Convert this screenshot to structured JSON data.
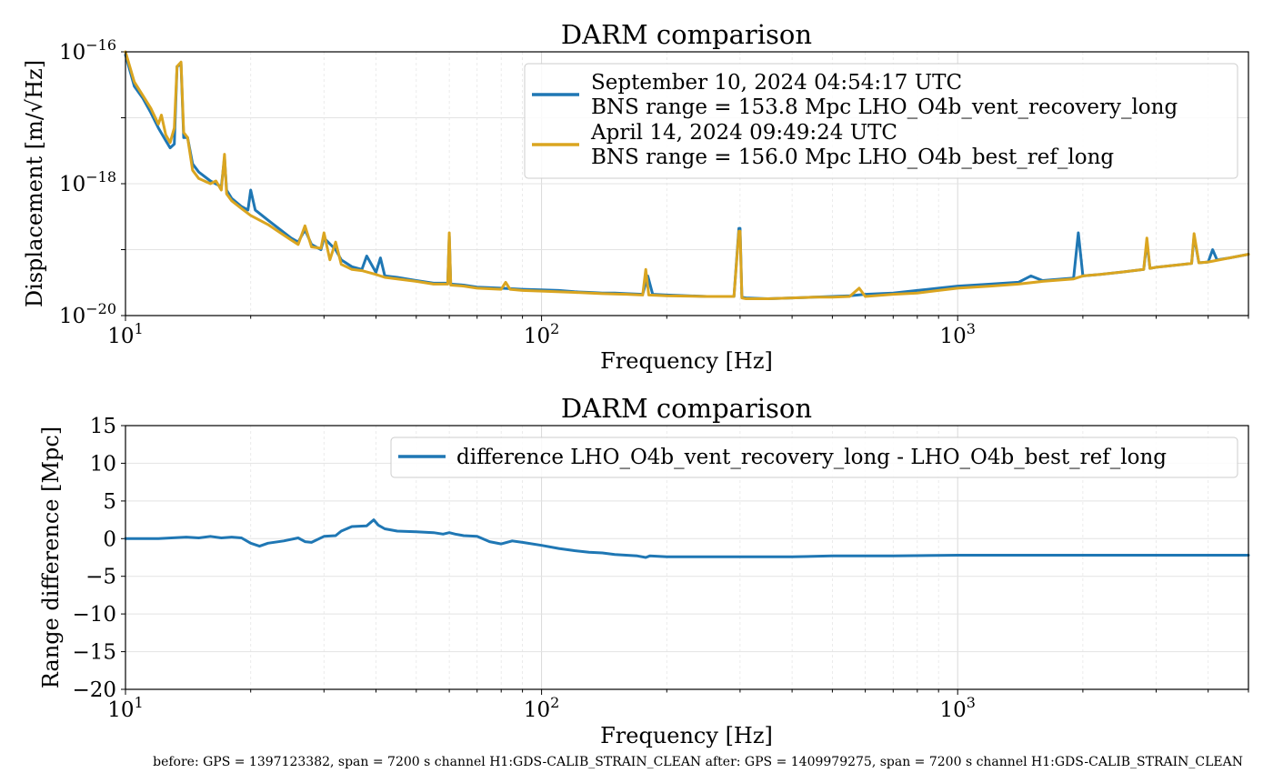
{
  "chart_data": [
    {
      "type": "line",
      "title": "DARM comparison",
      "xlabel": "Frequency [Hz]",
      "ylabel": "Displacement [m/√Hz]",
      "xscale": "log",
      "yscale": "log",
      "xlim": [
        10,
        5000
      ],
      "ylim": [
        1e-20,
        1e-16
      ],
      "x_ticks": [
        {
          "base": "10",
          "exp": "1"
        },
        {
          "base": "10",
          "exp": "2"
        },
        {
          "base": "10",
          "exp": "3"
        }
      ],
      "y_ticks": [
        {
          "base": "10",
          "exp": "−16"
        },
        {
          "base": "10",
          "exp": "−18"
        },
        {
          "base": "10",
          "exp": "−20"
        }
      ],
      "grid": true,
      "legend_position": "top-right",
      "series": [
        {
          "name": "September 10, 2024 04:54:17 UTC",
          "name2": "BNS range = 153.8 Mpc LHO_O4b_vent_recovery_long",
          "color": "#1f77b4",
          "x": [
            10,
            10.5,
            11,
            11.5,
            12,
            12.5,
            12.8,
            13.1,
            13.3,
            13.6,
            13.8,
            14.1,
            14.5,
            15,
            16,
            17,
            17.3,
            17.5,
            18,
            19,
            19.7,
            20,
            20.5,
            22,
            25,
            26,
            27,
            28,
            29.5,
            30,
            32,
            33,
            35,
            37,
            38,
            40,
            41,
            42,
            45,
            50,
            55,
            59.5,
            60,
            60.5,
            65,
            70,
            80,
            90,
            100,
            110,
            120,
            130,
            140,
            150,
            160,
            175,
            180,
            185,
            200,
            250,
            290,
            298,
            300,
            303,
            310,
            350,
            400,
            450,
            500,
            550,
            600,
            700,
            800,
            900,
            1000,
            1200,
            1400,
            1500,
            1600,
            1900,
            1950,
            2000,
            2200,
            2500,
            2800,
            2850,
            2900,
            3000,
            3500,
            3650,
            3700,
            3800,
            4000,
            4100,
            4200,
            4500,
            5000
          ],
          "y": [
            9e-17,
            3e-17,
            2e-17,
            1.2e-17,
            7e-18,
            4.5e-18,
            3.5e-18,
            4e-18,
            6e-17,
            6.5e-17,
            5e-18,
            5e-18,
            2e-18,
            1.5e-18,
            1.1e-18,
            9e-19,
            2.5e-18,
            8e-19,
            6e-19,
            4.5e-19,
            4e-19,
            8e-19,
            4e-19,
            2.8e-19,
            1.5e-19,
            1.3e-19,
            2e-19,
            1.2e-19,
            1e-19,
            1.5e-19,
            1e-19,
            7e-20,
            5.5e-20,
            5e-20,
            8e-20,
            4.5e-20,
            7.5e-20,
            4e-20,
            3.8e-20,
            3.4e-20,
            3.1e-20,
            3.1e-20,
            1.6e-19,
            3e-20,
            2.9e-20,
            2.7e-20,
            2.6e-20,
            2.5e-20,
            2.45e-20,
            2.4e-20,
            2.3e-20,
            2.25e-20,
            2.2e-20,
            2.2e-20,
            2.15e-20,
            2.1e-20,
            4e-20,
            2.1e-20,
            2.05e-20,
            1.95e-20,
            1.95e-20,
            2.1e-19,
            2.1e-19,
            1.9e-20,
            1.85e-20,
            1.8e-20,
            1.85e-20,
            1.9e-20,
            1.95e-20,
            2e-20,
            2.1e-20,
            2.2e-20,
            2.4e-20,
            2.6e-20,
            2.8e-20,
            3e-20,
            3.2e-20,
            4e-20,
            3.4e-20,
            3.7e-20,
            1.8e-19,
            4e-20,
            4.2e-20,
            4.6e-20,
            5e-20,
            1.3e-19,
            5.2e-20,
            5.4e-20,
            6e-20,
            6.2e-20,
            1.6e-19,
            6.3e-20,
            6.5e-20,
            1e-19,
            7e-20,
            7.5e-20,
            8.5e-20
          ]
        },
        {
          "name": "April 14, 2024 09:49:24 UTC",
          "name2": "BNS range = 156.0 Mpc LHO_O4b_best_ref_long",
          "color": "#daa520",
          "x": [
            10,
            10.5,
            11,
            11.5,
            12,
            12.2,
            12.5,
            12.8,
            13.1,
            13.3,
            13.6,
            13.8,
            14.1,
            14.5,
            15,
            16,
            16.5,
            17,
            17.3,
            17.5,
            18,
            19,
            20,
            22,
            25,
            26,
            27,
            28,
            29.5,
            30,
            31,
            32,
            33,
            35,
            37,
            40,
            42,
            45,
            50,
            55,
            59.5,
            60,
            60.5,
            65,
            70,
            80,
            82,
            84,
            90,
            100,
            120,
            140,
            160,
            175,
            178,
            181,
            200,
            250,
            290,
            298,
            300,
            303,
            310,
            350,
            400,
            450,
            500,
            550,
            580,
            600,
            700,
            800,
            900,
            1000,
            1200,
            1400,
            1600,
            1900,
            2000,
            2200,
            2500,
            2800,
            2850,
            2900,
            3000,
            3500,
            3650,
            3700,
            3800,
            4000,
            4500,
            5000
          ],
          "y": [
            1e-16,
            3.5e-17,
            2.2e-17,
            1.4e-17,
            8e-18,
            1.1e-17,
            5.5e-18,
            4.2e-18,
            7e-18,
            6e-17,
            7e-17,
            6e-18,
            5e-18,
            1.6e-18,
            1.2e-18,
            1e-18,
            1.1e-18,
            8e-19,
            2.8e-18,
            7e-19,
            5.5e-19,
            4.2e-19,
            3.3e-19,
            2.4e-19,
            1.4e-19,
            1.2e-19,
            2.3e-19,
            1.1e-19,
            1.05e-19,
            1.8e-19,
            7e-20,
            1.3e-19,
            6e-20,
            5e-20,
            4.8e-20,
            4.2e-20,
            3.8e-20,
            3.6e-20,
            3.3e-20,
            3e-20,
            3e-20,
            1.8e-19,
            2.9e-20,
            2.8e-20,
            2.6e-20,
            2.5e-20,
            3.2e-20,
            2.5e-20,
            2.4e-20,
            2.35e-20,
            2.25e-20,
            2.15e-20,
            2.1e-20,
            2.05e-20,
            5e-20,
            2.05e-20,
            2e-20,
            1.95e-20,
            1.95e-20,
            1.9e-19,
            1.9e-19,
            1.85e-20,
            1.8e-20,
            1.8e-20,
            1.85e-20,
            1.9e-20,
            1.9e-20,
            1.95e-20,
            2.6e-20,
            1.95e-20,
            2.1e-20,
            2.2e-20,
            2.4e-20,
            2.6e-20,
            2.8e-20,
            3e-20,
            3.3e-20,
            3.6e-20,
            4e-20,
            4.2e-20,
            4.6e-20,
            5e-20,
            1.5e-19,
            5.2e-20,
            5.4e-20,
            6e-20,
            6.2e-20,
            1.75e-19,
            6.3e-20,
            6.5e-20,
            7.5e-20,
            8.5e-20
          ]
        }
      ]
    },
    {
      "type": "line",
      "title": "DARM comparison",
      "xlabel": "Frequency [Hz]",
      "ylabel": "Range difference [Mpc]",
      "xscale": "log",
      "yscale": "linear",
      "xlim": [
        10,
        5000
      ],
      "ylim": [
        -20,
        15
      ],
      "x_ticks": [
        {
          "base": "10",
          "exp": "1"
        },
        {
          "base": "10",
          "exp": "2"
        },
        {
          "base": "10",
          "exp": "3"
        }
      ],
      "y_ticks": [
        "15",
        "10",
        "5",
        "0",
        "−5",
        "−10",
        "−15",
        "−20"
      ],
      "y_tick_values": [
        15,
        10,
        5,
        0,
        -5,
        -10,
        -15,
        -20
      ],
      "grid": true,
      "legend_position": "top-right",
      "series": [
        {
          "name": "difference LHO_O4b_vent_recovery_long - LHO_O4b_best_ref_long",
          "color": "#1f77b4",
          "x": [
            10,
            12,
            14,
            15,
            16,
            17,
            18,
            19,
            20,
            21,
            22,
            24,
            26,
            27,
            28,
            30,
            32,
            33,
            35,
            38,
            39.5,
            40.5,
            42,
            45,
            50,
            55,
            58,
            60,
            62,
            65,
            70,
            75,
            80,
            85,
            90,
            100,
            110,
            120,
            130,
            140,
            150,
            170,
            178,
            182,
            200,
            250,
            300,
            400,
            500,
            700,
            1000,
            2000,
            3000,
            5000
          ],
          "y": [
            0,
            0,
            0.2,
            0.1,
            0.3,
            0.1,
            0.2,
            0.1,
            -0.6,
            -1,
            -0.6,
            -0.3,
            0.1,
            -0.4,
            -0.5,
            0.3,
            0.4,
            1,
            1.6,
            1.7,
            2.5,
            1.8,
            1.3,
            1,
            0.9,
            0.8,
            0.6,
            0.8,
            0.6,
            0.4,
            0.3,
            -0.4,
            -0.7,
            -0.3,
            -0.5,
            -0.9,
            -1.3,
            -1.6,
            -1.8,
            -1.9,
            -2.1,
            -2.3,
            -2.5,
            -2.3,
            -2.4,
            -2.4,
            -2.4,
            -2.4,
            -2.3,
            -2.3,
            -2.2,
            -2.2,
            -2.2,
            -2.2
          ]
        }
      ]
    }
  ],
  "footer": "before: GPS = 1397123382, span = 7200 s channel H1:GDS-CALIB_STRAIN_CLEAN after: GPS = 1409979275, span = 7200 s channel H1:GDS-CALIB_STRAIN_CLEAN"
}
